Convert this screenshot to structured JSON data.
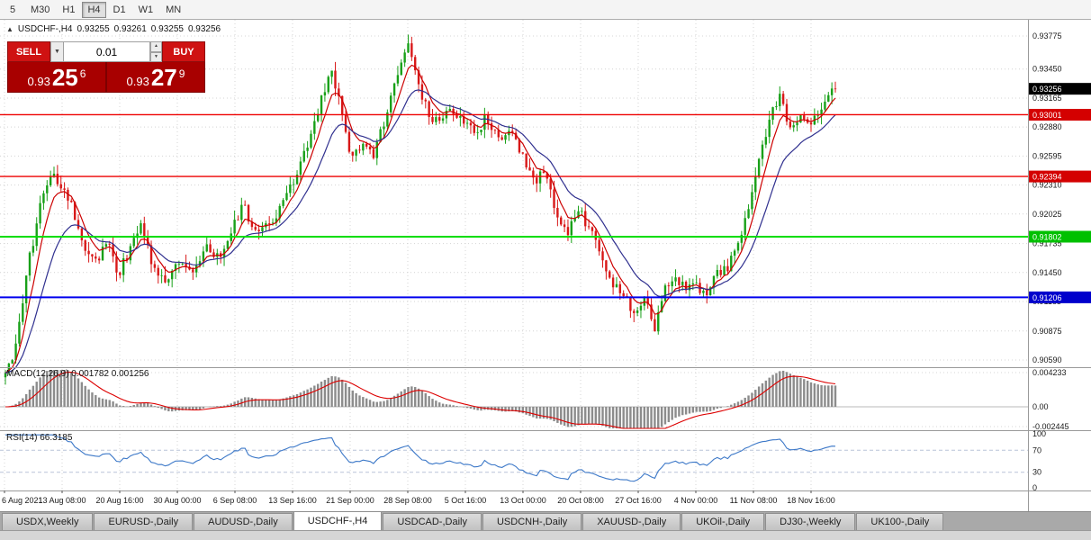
{
  "icons": {
    "expand": "▲",
    "dropdown": "▼",
    "spin_up": "▲",
    "spin_down": "▼"
  },
  "toolbar": {
    "timeframes": [
      {
        "label": "5",
        "active": false
      },
      {
        "label": "M30",
        "active": false
      },
      {
        "label": "H1",
        "active": false
      },
      {
        "label": "H4",
        "active": true
      },
      {
        "label": "D1",
        "active": false
      },
      {
        "label": "W1",
        "active": false
      },
      {
        "label": "MN",
        "active": false
      }
    ]
  },
  "chart_header": {
    "symbol": "USDCHF-,H4",
    "open": "0.93255",
    "high": "0.93261",
    "low": "0.93255",
    "close": "0.93256"
  },
  "trade_panel": {
    "sell_label": "SELL",
    "buy_label": "BUY",
    "volume": "0.01",
    "sell_price_big": "0.93",
    "sell_price_pips": "25",
    "sell_price_pip": "6",
    "buy_price_big": "0.93",
    "buy_price_pips": "27",
    "buy_price_pip": "9"
  },
  "price_axis": {
    "ticks": [
      "0.93775",
      "0.93450",
      "0.93165",
      "0.92880",
      "0.92595",
      "0.92310",
      "0.92025",
      "0.91735",
      "0.91450",
      "0.91165",
      "0.90875",
      "0.90590"
    ],
    "badges": [
      {
        "value": "0.93256",
        "price": 0.93256,
        "bg": "#000000",
        "fg": "#ffffff"
      },
      {
        "value": "0.93001",
        "price": 0.93001,
        "bg": "#d40000",
        "fg": "#ffffff"
      },
      {
        "value": "0.92394",
        "price": 0.92394,
        "bg": "#d40000",
        "fg": "#ffffff"
      },
      {
        "value": "0.91802",
        "price": 0.91802,
        "bg": "#00c000",
        "fg": "#ffffff"
      },
      {
        "value": "0.91206",
        "price": 0.91206,
        "bg": "#0000cc",
        "fg": "#ffffff"
      }
    ]
  },
  "hlines": [
    {
      "price": 0.93001,
      "color": "#ee0000",
      "width": 1.4
    },
    {
      "price": 0.92394,
      "color": "#ee0000",
      "width": 1.4
    },
    {
      "price": 0.91802,
      "color": "#00dd00",
      "width": 2
    },
    {
      "price": 0.91206,
      "color": "#0000ee",
      "width": 2
    }
  ],
  "time_axis": [
    "6 Aug 2021",
    "13 Aug 08:00",
    "20 Aug 16:00",
    "30 Aug 00:00",
    "6 Sep 08:00",
    "13 Sep 16:00",
    "21 Sep 00:00",
    "28 Sep 08:00",
    "5 Oct 16:00",
    "13 Oct 00:00",
    "20 Oct 08:00",
    "27 Oct 16:00",
    "4 Nov 00:00",
    "11 Nov 08:00",
    "18 Nov 16:00"
  ],
  "macd_panel": {
    "label": "MACD(12,26,9)",
    "value_main": "0.001782",
    "value_signal": "0.001256",
    "axis_top": "0.004233",
    "axis_zero": "0.00",
    "axis_bottom": "-0.002445"
  },
  "rsi_panel": {
    "label": "RSI(14)",
    "value": "66.3185",
    "axis": [
      "100",
      "70",
      "30",
      "0"
    ],
    "upper": 70,
    "lower": 30
  },
  "tabs": [
    {
      "label": "USDX,Weekly",
      "active": false
    },
    {
      "label": "EURUSD-,Daily",
      "active": false
    },
    {
      "label": "AUDUSD-,Daily",
      "active": false
    },
    {
      "label": "USDCHF-,H4",
      "active": true
    },
    {
      "label": "USDCAD-,Daily",
      "active": false
    },
    {
      "label": "USDCNH-,Daily",
      "active": false
    },
    {
      "label": "XAUUSD-,Daily",
      "active": false
    },
    {
      "label": "UKOil-,Daily",
      "active": false
    },
    {
      "label": "DJ30-,Weekly",
      "active": false
    },
    {
      "label": "UK100-,Daily",
      "active": false
    }
  ],
  "colors": {
    "up": "#18a018",
    "down": "#d81818",
    "ma_fast": "#cc0000",
    "ma_slow": "#30308f",
    "macd_hist": "#8c8c8c",
    "macd_signal": "#dd0000",
    "rsi": "#3c78c8",
    "grid": "#d4d4d4",
    "axis_text": "#1a1a1a"
  },
  "chart_data": {
    "type": "candlestick",
    "symbol": "USDCHF",
    "timeframe": "H4",
    "visible_range": {
      "high": 0.93775,
      "low": 0.9059
    },
    "num_candles": 240,
    "seed": 20211118,
    "path_anchors": [
      [
        0.0,
        0.9042
      ],
      [
        0.008,
        0.906
      ],
      [
        0.018,
        0.9105
      ],
      [
        0.03,
        0.9163
      ],
      [
        0.042,
        0.921
      ],
      [
        0.055,
        0.924
      ],
      [
        0.068,
        0.9232
      ],
      [
        0.08,
        0.9212
      ],
      [
        0.094,
        0.917
      ],
      [
        0.108,
        0.9152
      ],
      [
        0.122,
        0.9178
      ],
      [
        0.136,
        0.9142
      ],
      [
        0.15,
        0.9168
      ],
      [
        0.163,
        0.9196
      ],
      [
        0.178,
        0.9152
      ],
      [
        0.193,
        0.9136
      ],
      [
        0.207,
        0.9156
      ],
      [
        0.225,
        0.9148
      ],
      [
        0.243,
        0.9168
      ],
      [
        0.258,
        0.9158
      ],
      [
        0.272,
        0.9186
      ],
      [
        0.287,
        0.9212
      ],
      [
        0.302,
        0.918
      ],
      [
        0.318,
        0.9192
      ],
      [
        0.334,
        0.921
      ],
      [
        0.35,
        0.924
      ],
      [
        0.366,
        0.9276
      ],
      [
        0.38,
        0.9316
      ],
      [
        0.394,
        0.9344
      ],
      [
        0.406,
        0.9296
      ],
      [
        0.418,
        0.9254
      ],
      [
        0.43,
        0.9272
      ],
      [
        0.442,
        0.9258
      ],
      [
        0.456,
        0.929
      ],
      [
        0.47,
        0.9336
      ],
      [
        0.485,
        0.9374
      ],
      [
        0.497,
        0.933
      ],
      [
        0.51,
        0.93
      ],
      [
        0.524,
        0.9288
      ],
      [
        0.538,
        0.9308
      ],
      [
        0.552,
        0.9294
      ],
      [
        0.566,
        0.928
      ],
      [
        0.58,
        0.9298
      ],
      [
        0.594,
        0.9276
      ],
      [
        0.608,
        0.929
      ],
      [
        0.622,
        0.926
      ],
      [
        0.636,
        0.9236
      ],
      [
        0.65,
        0.9242
      ],
      [
        0.664,
        0.9204
      ],
      [
        0.678,
        0.9182
      ],
      [
        0.69,
        0.9208
      ],
      [
        0.704,
        0.9188
      ],
      [
        0.718,
        0.9158
      ],
      [
        0.73,
        0.9132
      ],
      [
        0.742,
        0.9128
      ],
      [
        0.756,
        0.9106
      ],
      [
        0.77,
        0.912
      ],
      [
        0.782,
        0.9086
      ],
      [
        0.795,
        0.9128
      ],
      [
        0.808,
        0.9142
      ],
      [
        0.82,
        0.9126
      ],
      [
        0.832,
        0.9136
      ],
      [
        0.845,
        0.912
      ],
      [
        0.858,
        0.9146
      ],
      [
        0.87,
        0.915
      ],
      [
        0.885,
        0.9175
      ],
      [
        0.898,
        0.9215
      ],
      [
        0.91,
        0.9262
      ],
      [
        0.922,
        0.93
      ],
      [
        0.934,
        0.9318
      ],
      [
        0.944,
        0.9286
      ],
      [
        0.956,
        0.9296
      ],
      [
        0.968,
        0.9288
      ],
      [
        0.98,
        0.9304
      ],
      [
        1.0,
        0.93256
      ]
    ]
  }
}
